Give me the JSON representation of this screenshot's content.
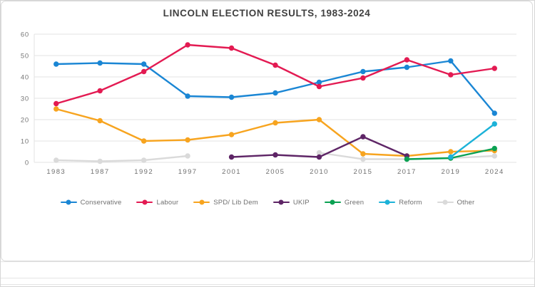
{
  "chart_data": {
    "type": "line",
    "title": "LINCOLN ELECTION RESULTS, 1983-2024",
    "categories": [
      "1983",
      "1987",
      "1992",
      "1997",
      "2001",
      "2005",
      "2010",
      "2015",
      "2017",
      "2019",
      "2024"
    ],
    "series": [
      {
        "name": "Conservative",
        "color": "#1a86d4",
        "values": [
          46,
          46.5,
          46,
          31,
          30.5,
          32.5,
          37.5,
          42.5,
          44.5,
          47.5,
          23
        ]
      },
      {
        "name": "Labour",
        "color": "#e31a52",
        "values": [
          27.5,
          33.5,
          42.5,
          55,
          53.5,
          45.5,
          35.5,
          39.5,
          48,
          41,
          44
        ]
      },
      {
        "name": "SPD/ Lib Dem",
        "color": "#f7a41f",
        "values": [
          25,
          19.5,
          10,
          10.5,
          13,
          18.5,
          20,
          4,
          3,
          5,
          5.5
        ]
      },
      {
        "name": "UKIP",
        "color": "#5e2566",
        "values": [
          null,
          null,
          null,
          null,
          2.5,
          3.5,
          2.5,
          12,
          3,
          null,
          null
        ]
      },
      {
        "name": "Green",
        "color": "#0aa152",
        "values": [
          null,
          null,
          null,
          null,
          null,
          null,
          null,
          null,
          1.5,
          2,
          6.5
        ]
      },
      {
        "name": "Reform",
        "color": "#1cb2d8",
        "values": [
          null,
          null,
          null,
          null,
          null,
          null,
          null,
          null,
          null,
          2.5,
          18
        ]
      },
      {
        "name": "Other",
        "color": "#dadada",
        "values": [
          1,
          0.5,
          1,
          3,
          null,
          null,
          4.5,
          1.5,
          1.5,
          2,
          3
        ]
      }
    ],
    "ylim": [
      0,
      60
    ],
    "ytick_step": 10,
    "yticks": [
      "0",
      "10",
      "20",
      "30",
      "40",
      "50",
      "60"
    ],
    "grid": true,
    "legend_position": "bottom",
    "gridline_color": "#e3e3e3",
    "axis_label_color": "#767676"
  }
}
